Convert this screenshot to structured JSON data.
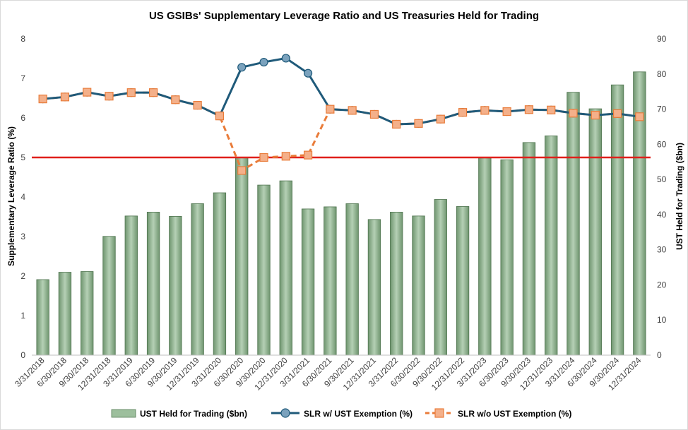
{
  "chart_data": {
    "type": "bar+line",
    "title": "US GSIBs' Supplementary Leverage Ratio and US Treasuries Held for Trading",
    "categories": [
      "3/31/2018",
      "6/30/2018",
      "9/30/2018",
      "12/31/2018",
      "3/31/2019",
      "6/30/2019",
      "9/30/2019",
      "12/31/2019",
      "3/31/2020",
      "6/30/2020",
      "9/30/2020",
      "12/31/2020",
      "3/31/2021",
      "6/30/2021",
      "9/30/2021",
      "12/31/2021",
      "3/31/2022",
      "6/30/2022",
      "9/30/2022",
      "12/31/2022",
      "3/31/2023",
      "6/30/2023",
      "9/30/2023",
      "12/31/2023",
      "3/31/2024",
      "6/30/2024",
      "9/30/2024",
      "12/31/2024"
    ],
    "y_left": {
      "label": "Supplementary Leverage Ratio (%)",
      "lim": [
        0,
        8
      ],
      "ticks": [
        "0",
        "1",
        "2",
        "3",
        "4",
        "5",
        "6",
        "7",
        "8"
      ]
    },
    "y_right": {
      "label": "UST Held for Trading ($bn)",
      "lim": [
        0,
        90
      ],
      "ticks": [
        "0",
        "10",
        "20",
        "30",
        "40",
        "50",
        "60",
        "70",
        "80",
        "90"
      ]
    },
    "series": [
      {
        "name": "UST Held for Trading ($bn)",
        "type": "bar",
        "axis": "right",
        "color": "#7fa47f",
        "values": [
          21.5,
          23.6,
          23.8,
          33.8,
          39.6,
          40.7,
          39.5,
          43.1,
          46.2,
          56.3,
          48.4,
          49.6,
          41.6,
          42.2,
          43.1,
          38.6,
          40.7,
          39.6,
          44.3,
          42.3,
          56.1,
          55.6,
          60.5,
          62.4,
          74.8,
          70.1,
          76.9,
          80.6
        ]
      },
      {
        "name": "SLR w/ UST Exemption (%)",
        "type": "line",
        "axis": "left",
        "color": "#1f5a7a",
        "values": [
          6.48,
          6.53,
          6.65,
          6.55,
          6.64,
          6.64,
          6.46,
          6.32,
          6.05,
          7.28,
          7.41,
          7.51,
          7.13,
          6.22,
          6.19,
          6.09,
          5.84,
          5.86,
          5.97,
          6.14,
          6.19,
          6.16,
          6.21,
          6.2,
          6.12,
          6.07,
          6.11,
          6.03
        ]
      },
      {
        "name": "SLR w/o UST Exemption (%)",
        "type": "line",
        "axis": "left",
        "color": "#e97c3a",
        "dashed": true,
        "values": [
          6.48,
          6.53,
          6.65,
          6.55,
          6.64,
          6.64,
          6.46,
          6.32,
          6.05,
          4.67,
          5.0,
          5.03,
          5.06,
          6.22,
          6.19,
          6.09,
          5.84,
          5.86,
          5.97,
          6.14,
          6.19,
          6.16,
          6.21,
          6.2,
          6.12,
          6.07,
          6.11,
          6.03
        ]
      }
    ],
    "reference_line": {
      "axis": "left",
      "value": 5,
      "color": "#e0201b"
    },
    "grid": false,
    "legend_position": "bottom"
  }
}
